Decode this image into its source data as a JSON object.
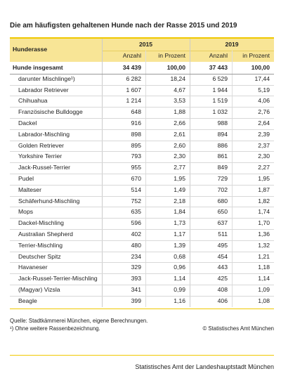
{
  "title": "Die am häufigsten gehaltenen Hunde nach der Rasse 2015 und 2019",
  "table": {
    "group_headers": [
      "2015",
      "2019"
    ],
    "header": [
      "Hunderasse",
      "Anzahl",
      "in Prozent",
      "Anzahl",
      "in Prozent"
    ],
    "rows": [
      [
        "Hunde insgesamt",
        "34 439",
        "100,00",
        "37 443",
        "100,00"
      ],
      [
        "darunter Mischlinge¹)",
        "6 282",
        "18,24",
        "6 529",
        "17,44"
      ],
      [
        "Labrador Retriever",
        "1 607",
        "4,67",
        "1 944",
        "5,19"
      ],
      [
        "Chihuahua",
        "1 214",
        "3,53",
        "1 519",
        "4,06"
      ],
      [
        "Französische Bulldogge",
        "648",
        "1,88",
        "1 032",
        "2,76"
      ],
      [
        "Dackel",
        "916",
        "2,66",
        "988",
        "2,64"
      ],
      [
        "Labrador-Mischling",
        "898",
        "2,61",
        "894",
        "2,39"
      ],
      [
        "Golden Retriever",
        "895",
        "2,60",
        "886",
        "2,37"
      ],
      [
        "Yorkshire Terrier",
        "793",
        "2,30",
        "861",
        "2,30"
      ],
      [
        "Jack-Russel-Terrier",
        "955",
        "2,77",
        "849",
        "2,27"
      ],
      [
        "Pudel",
        "670",
        "1,95",
        "729",
        "1,95"
      ],
      [
        "Malteser",
        "514",
        "1,49",
        "702",
        "1,87"
      ],
      [
        "Schäferhund-Mischling",
        "752",
        "2,18",
        "680",
        "1,82"
      ],
      [
        "Mops",
        "635",
        "1,84",
        "650",
        "1,74"
      ],
      [
        "Dackel-Mischling",
        "596",
        "1,73",
        "637",
        "1,70"
      ],
      [
        "Australian Shepherd",
        "402",
        "1,17",
        "511",
        "1,36"
      ],
      [
        "Terrier-Mischling",
        "480",
        "1,39",
        "495",
        "1,32"
      ],
      [
        "Deutscher Spitz",
        "234",
        "0,68",
        "454",
        "1,21"
      ],
      [
        "Havaneser",
        "329",
        "0,96",
        "443",
        "1,18"
      ],
      [
        "Jack-Russel-Terrier-Mischling",
        "393",
        "1,14",
        "425",
        "1,14"
      ],
      [
        "(Magyar) Vizsla",
        "341",
        "0,99",
        "408",
        "1,09"
      ],
      [
        "Beagle",
        "399",
        "1,16",
        "406",
        "1,08"
      ]
    ]
  },
  "footer": {
    "source": "Quelle: Stadtkämmerei München, eigene Berechnungen.",
    "footnote": "¹) Ohne weitere Rassenbezeichnung.",
    "copyright": "© Statistisches Amt München",
    "publisher": "Statistisches Amt der Landeshauptstadt München"
  }
}
